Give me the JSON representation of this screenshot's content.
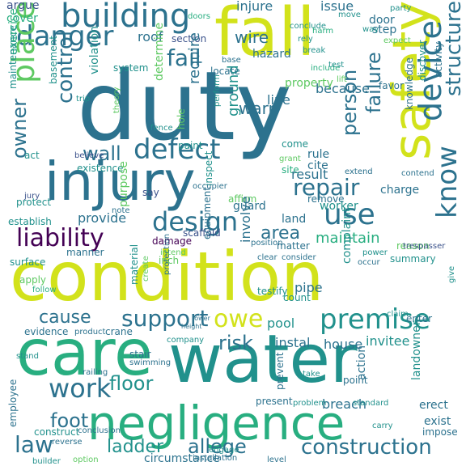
{
  "palette": {
    "yellow": "#d2e21b",
    "lime": "#addc30",
    "green": "#5ec962",
    "teal_green": "#28ae80",
    "teal": "#21918c",
    "blue_teal": "#2c728e",
    "blue": "#3b528b",
    "indigo": "#472d7b",
    "purple": "#440154"
  },
  "words": [
    "duty",
    "condition",
    "fall",
    "care",
    "water",
    "negligence",
    "injury",
    "safety",
    "building",
    "defect",
    "danger",
    "device",
    "know",
    "premise",
    "place",
    "liability",
    "use",
    "design",
    "repair",
    "fail",
    "structure",
    "construction",
    "law",
    "work",
    "support",
    "owe",
    "foot",
    "floor",
    "ladder",
    "allege",
    "cause",
    "wall",
    "control",
    "owner",
    "failure",
    "person",
    "risk",
    "area",
    "maintain",
    "warn",
    "wire",
    "injure",
    "issue",
    "door",
    "step",
    "roof",
    "section",
    "hazard",
    "argue",
    "cover",
    "exercise",
    "basement",
    "ground",
    "line",
    "because",
    "property",
    "require",
    "determine",
    "violation",
    "act",
    "believe",
    "paint",
    "theory",
    "existence",
    "protect",
    "say",
    "purpose",
    "cite",
    "rule",
    "come",
    "site",
    "grant",
    "result",
    "remove",
    "worker",
    "charge",
    "land",
    "guard",
    "affirm",
    "inspect",
    "provide",
    "jury",
    "establish",
    "scaffold",
    "manner",
    "intend",
    "damage",
    "inch",
    "equipment",
    "involve",
    "matter",
    "consider",
    "complaint",
    "reason",
    "summary",
    "trespasser",
    "surface",
    "apply",
    "follow",
    "pipe",
    "testify",
    "count",
    "material",
    "create",
    "protection",
    "evidence",
    "crane",
    "product",
    "instal",
    "pool",
    "house",
    "invitee",
    "enter",
    "landowner",
    "stand",
    "stair",
    "swimming",
    "prevent",
    "take",
    "action",
    "point",
    "breach",
    "standard",
    "erect",
    "exist",
    "impose",
    "carry",
    "present",
    "problem",
    "employee",
    "construct",
    "circumstance",
    "level",
    "engage",
    "conclude",
    "expect",
    "activity",
    "favor",
    "knowledge",
    "discover",
    "contend",
    "extend",
    "occupier",
    "power",
    "occur",
    "give",
    "claim",
    "maintenance",
    "system",
    "fence",
    "locate",
    "base",
    "hole",
    "perform",
    "lift",
    "include",
    "test",
    "break",
    "rely",
    "harm",
    "way",
    "move",
    "party",
    "reverse",
    "conclusion",
    "installation",
    "option",
    "builder",
    "railing",
    "company",
    "lower",
    "height",
    "doors",
    "clear",
    "position",
    "note",
    "trip"
  ]
}
